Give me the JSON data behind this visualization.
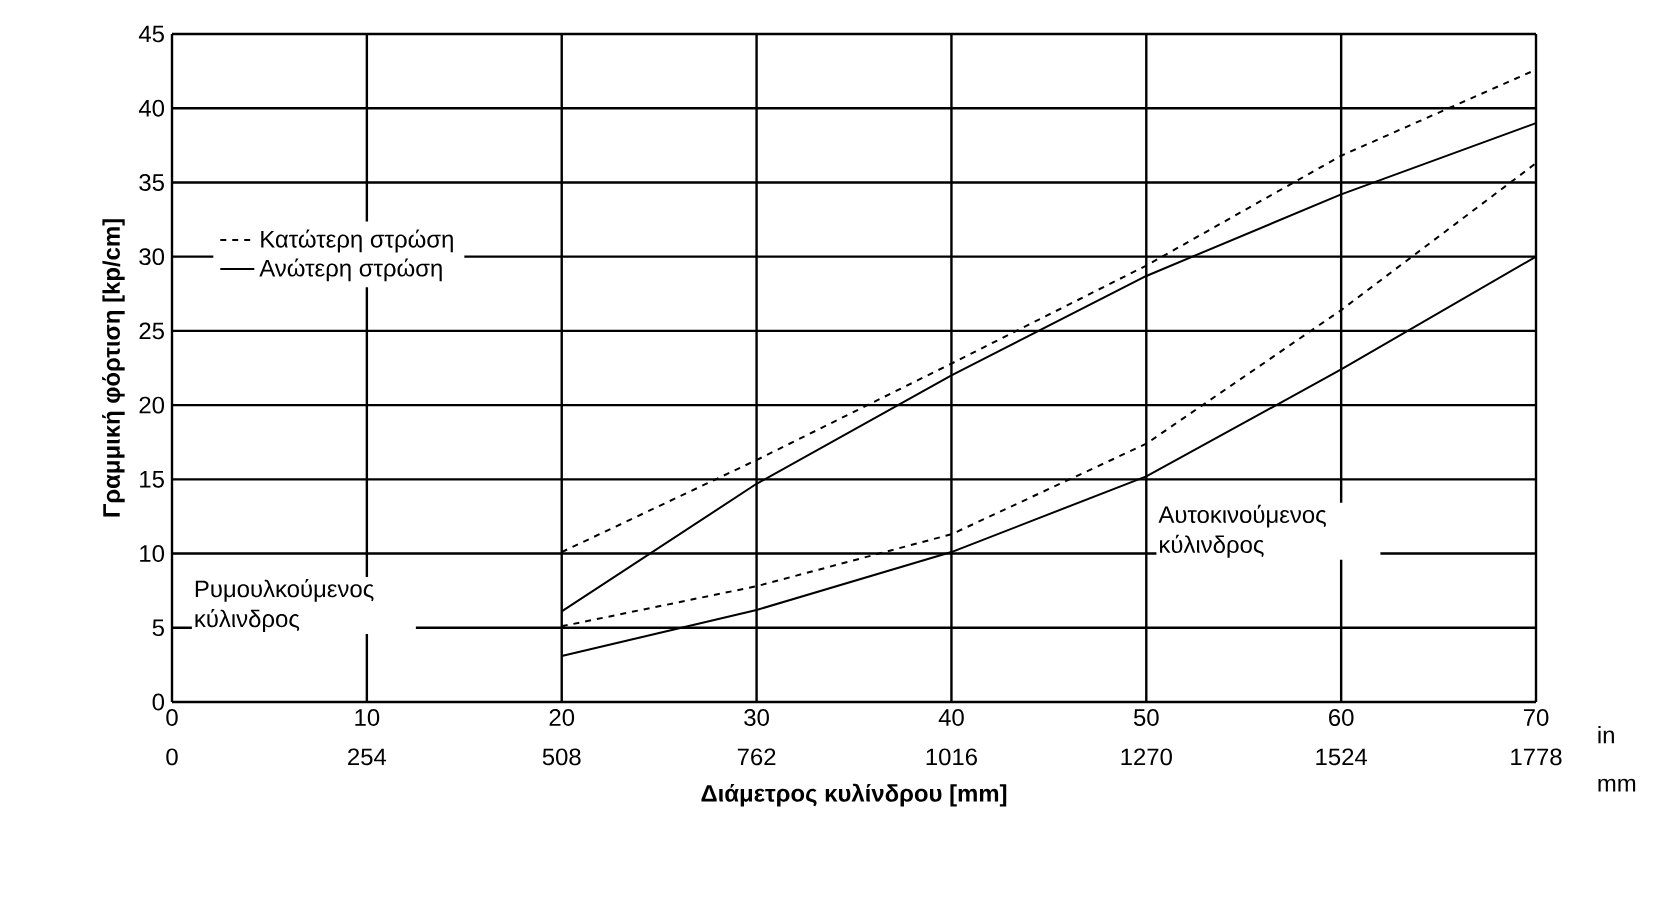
{
  "chart_data": {
    "type": "line",
    "xlabel": "Διάμετρος κυλίνδρου [mm]",
    "ylabel": "Γραμμική φόρτιση [kp/cm]",
    "x": [
      20,
      30,
      40,
      50,
      60,
      70
    ],
    "series": [
      {
        "name": "Κατώτερη στρώση",
        "color": "#000000",
        "line_style": "dashed",
        "values": [
          10.1,
          16.3,
          22.8,
          29.4,
          36.8,
          42.6
        ]
      },
      {
        "name": "Ανώτερη στρώση",
        "color": "#000000",
        "line_style": "solid",
        "values": [
          6.1,
          14.7,
          22.0,
          28.7,
          34.2,
          39.0
        ]
      },
      {
        "color": "#000000",
        "line_style": "dashed",
        "values": [
          5.1,
          7.8,
          11.3,
          17.4,
          26.4,
          36.3
        ]
      },
      {
        "color": "#000000",
        "line_style": "solid",
        "values": [
          3.1,
          6.2,
          10.1,
          15.2,
          22.4,
          30.0
        ]
      }
    ],
    "xlim": [
      0,
      70
    ],
    "xticks": [
      0,
      10,
      20,
      30,
      40,
      50,
      60,
      70
    ],
    "x2lim": [
      0,
      1778
    ],
    "x2ticks": [
      0,
      254,
      508,
      762,
      1016,
      1270,
      1524,
      1778
    ],
    "ylim": [
      0,
      45
    ],
    "yticks": [
      0,
      5,
      10,
      15,
      20,
      25,
      30,
      35,
      40,
      45
    ],
    "grid": true,
    "legend": "left",
    "marker": "none",
    "annotations": [
      "Ρυμουλκούμενος κύλινδρος",
      "Αυτοκινούμενος κύλινδρος",
      "in",
      "mm"
    ]
  }
}
